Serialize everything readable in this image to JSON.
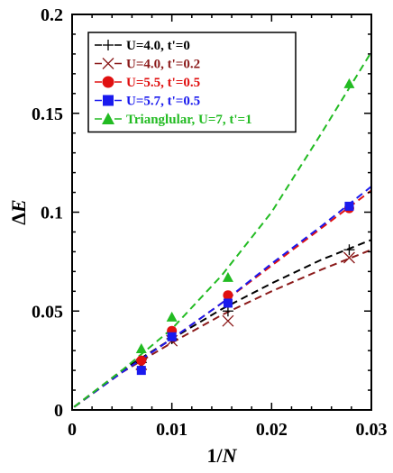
{
  "chart_data": {
    "type": "scatter",
    "xlabel": "1/N",
    "ylabel": "ΔE",
    "xlim": [
      0,
      0.03
    ],
    "ylim": [
      0,
      0.2
    ],
    "x_ticks": [
      0,
      0.01,
      0.02,
      0.03
    ],
    "x_tick_labels": [
      "0",
      "0.01",
      "0.02",
      "0.03"
    ],
    "y_ticks": [
      0,
      0.05,
      0.1,
      0.15,
      0.2
    ],
    "y_tick_labels": [
      "0",
      "0.05",
      "0.1",
      "0.15",
      "0.2"
    ],
    "grid": false,
    "legend_position": "top-left",
    "series": [
      {
        "name": "U=4.0, t'=0",
        "color": "#000000",
        "marker": "plus",
        "points": [
          [
            0.00694,
            0.024
          ],
          [
            0.01,
            0.036
          ],
          [
            0.015625,
            0.05
          ],
          [
            0.02778,
            0.081
          ]
        ],
        "fit": [
          [
            0.0002,
            0.0015
          ],
          [
            0.005,
            0.02
          ],
          [
            0.01,
            0.036
          ],
          [
            0.015,
            0.051
          ],
          [
            0.02,
            0.064
          ],
          [
            0.025,
            0.076
          ],
          [
            0.03,
            0.086
          ]
        ]
      },
      {
        "name": "U=4.0, t'=0.2",
        "color": "#8b1a1a",
        "marker": "x",
        "points": [
          [
            0.00694,
            0.023
          ],
          [
            0.01,
            0.035
          ],
          [
            0.015625,
            0.045
          ],
          [
            0.02778,
            0.077
          ]
        ],
        "fit": [
          [
            0.0002,
            0.0015
          ],
          [
            0.005,
            0.019
          ],
          [
            0.01,
            0.034
          ],
          [
            0.015,
            0.048
          ],
          [
            0.02,
            0.06
          ],
          [
            0.025,
            0.071
          ],
          [
            0.03,
            0.081
          ]
        ]
      },
      {
        "name": "U=5.5, t'=0.5",
        "color": "#e01010",
        "marker": "circle",
        "points": [
          [
            0.00694,
            0.025
          ],
          [
            0.01,
            0.04
          ],
          [
            0.015625,
            0.058
          ],
          [
            0.02778,
            0.102
          ]
        ],
        "fit": [
          [
            0.0002,
            0.0015
          ],
          [
            0.005,
            0.019
          ],
          [
            0.01,
            0.036
          ],
          [
            0.015,
            0.054
          ],
          [
            0.02,
            0.073
          ],
          [
            0.025,
            0.092
          ],
          [
            0.03,
            0.111
          ]
        ]
      },
      {
        "name": "U=5.7, t'=0.5",
        "color": "#1a1aee",
        "marker": "square",
        "points": [
          [
            0.00694,
            0.02
          ],
          [
            0.01,
            0.037
          ],
          [
            0.015625,
            0.054
          ],
          [
            0.02778,
            0.103
          ]
        ],
        "fit": [
          [
            0.0002,
            0.0015
          ],
          [
            0.005,
            0.019
          ],
          [
            0.01,
            0.036
          ],
          [
            0.015,
            0.054
          ],
          [
            0.02,
            0.074
          ],
          [
            0.025,
            0.093
          ],
          [
            0.03,
            0.113
          ]
        ]
      },
      {
        "name": "Trianglular, U=7, t'=1",
        "color": "#22bb22",
        "marker": "triangle",
        "points": [
          [
            0.00694,
            0.031
          ],
          [
            0.01,
            0.047
          ],
          [
            0.015625,
            0.067
          ],
          [
            0.02778,
            0.165
          ]
        ],
        "fit": [
          [
            0.0002,
            0.0015
          ],
          [
            0.005,
            0.02
          ],
          [
            0.01,
            0.041
          ],
          [
            0.015,
            0.068
          ],
          [
            0.02,
            0.1
          ],
          [
            0.025,
            0.14
          ],
          [
            0.03,
            0.181
          ]
        ]
      }
    ]
  }
}
